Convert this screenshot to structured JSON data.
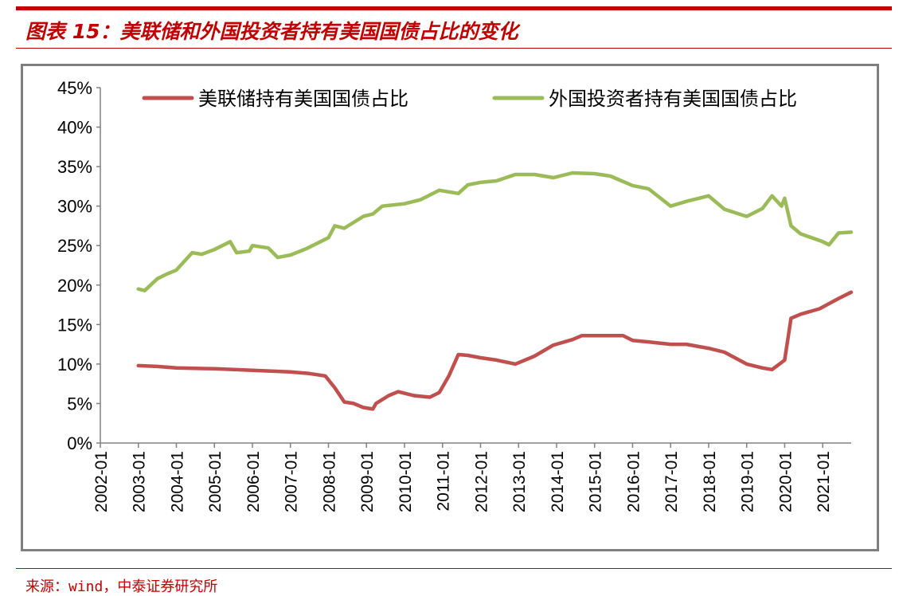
{
  "header": {
    "title": "图表 15：美联储和外国投资者持有美国国债占比的变化"
  },
  "footer": {
    "source": "来源：wind，中泰证券研究所"
  },
  "colors": {
    "accent": "#c00000",
    "series_fed": "#c0504d",
    "series_foreign": "#9bbb59",
    "frame": "#7f7f7f",
    "axis": "#808080"
  },
  "chart_data": {
    "type": "line",
    "title": "",
    "xlabel": "",
    "ylabel": "",
    "ylim": [
      0,
      0.45
    ],
    "y_ticks": [
      "0%",
      "5%",
      "10%",
      "15%",
      "20%",
      "25%",
      "30%",
      "35%",
      "40%",
      "45%"
    ],
    "x_ticks": [
      "2002-01",
      "2003-01",
      "2004-01",
      "2005-01",
      "2006-01",
      "2007-01",
      "2008-01",
      "2009-01",
      "2010-01",
      "2011-01",
      "2012-01",
      "2013-01",
      "2014-01",
      "2015-01",
      "2016-01",
      "2017-01",
      "2018-01",
      "2019-01",
      "2020-01",
      "2021-01"
    ],
    "x_range": [
      "2002-01",
      "2021-10"
    ],
    "grid": false,
    "legend_position": "top",
    "series": [
      {
        "name": "美联储持有美国国债占比",
        "color": "#c0504d",
        "points": [
          [
            "2003-01",
            0.098
          ],
          [
            "2003-07",
            0.097
          ],
          [
            "2004-01",
            0.095
          ],
          [
            "2005-01",
            0.094
          ],
          [
            "2006-01",
            0.092
          ],
          [
            "2007-01",
            0.09
          ],
          [
            "2007-07",
            0.088
          ],
          [
            "2007-12",
            0.085
          ],
          [
            "2008-03",
            0.07
          ],
          [
            "2008-06",
            0.052
          ],
          [
            "2008-09",
            0.05
          ],
          [
            "2008-12",
            0.045
          ],
          [
            "2009-03",
            0.043
          ],
          [
            "2009-04",
            0.05
          ],
          [
            "2009-08",
            0.06
          ],
          [
            "2009-11",
            0.065
          ],
          [
            "2010-01",
            0.063
          ],
          [
            "2010-04",
            0.06
          ],
          [
            "2010-09",
            0.058
          ],
          [
            "2010-12",
            0.064
          ],
          [
            "2011-03",
            0.085
          ],
          [
            "2011-06",
            0.112
          ],
          [
            "2011-09",
            0.111
          ],
          [
            "2012-01",
            0.108
          ],
          [
            "2012-06",
            0.105
          ],
          [
            "2012-12",
            0.1
          ],
          [
            "2013-06",
            0.11
          ],
          [
            "2013-12",
            0.124
          ],
          [
            "2014-06",
            0.131
          ],
          [
            "2014-09",
            0.136
          ],
          [
            "2015-01",
            0.136
          ],
          [
            "2015-06",
            0.136
          ],
          [
            "2015-10",
            0.136
          ],
          [
            "2016-01",
            0.13
          ],
          [
            "2016-06",
            0.128
          ],
          [
            "2017-01",
            0.125
          ],
          [
            "2017-06",
            0.125
          ],
          [
            "2018-01",
            0.12
          ],
          [
            "2018-06",
            0.115
          ],
          [
            "2019-01",
            0.1
          ],
          [
            "2019-06",
            0.095
          ],
          [
            "2019-09",
            0.093
          ],
          [
            "2019-12",
            0.102
          ],
          [
            "2020-01",
            0.105
          ],
          [
            "2020-03",
            0.158
          ],
          [
            "2020-06",
            0.163
          ],
          [
            "2020-12",
            0.17
          ],
          [
            "2021-06",
            0.183
          ],
          [
            "2021-10",
            0.191
          ]
        ]
      },
      {
        "name": "外国投资者持有美国国债占比",
        "color": "#9bbb59",
        "points": [
          [
            "2003-01",
            0.195
          ],
          [
            "2003-03",
            0.193
          ],
          [
            "2003-07",
            0.208
          ],
          [
            "2003-10",
            0.214
          ],
          [
            "2004-01",
            0.219
          ],
          [
            "2004-06",
            0.241
          ],
          [
            "2004-09",
            0.239
          ],
          [
            "2005-01",
            0.245
          ],
          [
            "2005-06",
            0.255
          ],
          [
            "2005-08",
            0.241
          ],
          [
            "2005-12",
            0.243
          ],
          [
            "2006-01",
            0.25
          ],
          [
            "2006-06",
            0.247
          ],
          [
            "2006-09",
            0.235
          ],
          [
            "2007-01",
            0.238
          ],
          [
            "2007-06",
            0.246
          ],
          [
            "2008-01",
            0.26
          ],
          [
            "2008-03",
            0.275
          ],
          [
            "2008-06",
            0.272
          ],
          [
            "2008-12",
            0.287
          ],
          [
            "2009-03",
            0.29
          ],
          [
            "2009-06",
            0.3
          ],
          [
            "2010-01",
            0.303
          ],
          [
            "2010-06",
            0.308
          ],
          [
            "2010-12",
            0.32
          ],
          [
            "2011-06",
            0.316
          ],
          [
            "2011-09",
            0.327
          ],
          [
            "2012-01",
            0.33
          ],
          [
            "2012-06",
            0.332
          ],
          [
            "2012-12",
            0.34
          ],
          [
            "2013-06",
            0.34
          ],
          [
            "2013-12",
            0.336
          ],
          [
            "2014-06",
            0.342
          ],
          [
            "2015-01",
            0.341
          ],
          [
            "2015-06",
            0.338
          ],
          [
            "2016-01",
            0.326
          ],
          [
            "2016-06",
            0.322
          ],
          [
            "2017-01",
            0.3
          ],
          [
            "2017-06",
            0.306
          ],
          [
            "2018-01",
            0.313
          ],
          [
            "2018-06",
            0.296
          ],
          [
            "2019-01",
            0.287
          ],
          [
            "2019-06",
            0.297
          ],
          [
            "2019-09",
            0.313
          ],
          [
            "2019-12",
            0.3
          ],
          [
            "2020-01",
            0.31
          ],
          [
            "2020-03",
            0.275
          ],
          [
            "2020-06",
            0.265
          ],
          [
            "2021-01",
            0.255
          ],
          [
            "2021-03",
            0.251
          ],
          [
            "2021-06",
            0.266
          ],
          [
            "2021-10",
            0.267
          ]
        ]
      }
    ]
  }
}
